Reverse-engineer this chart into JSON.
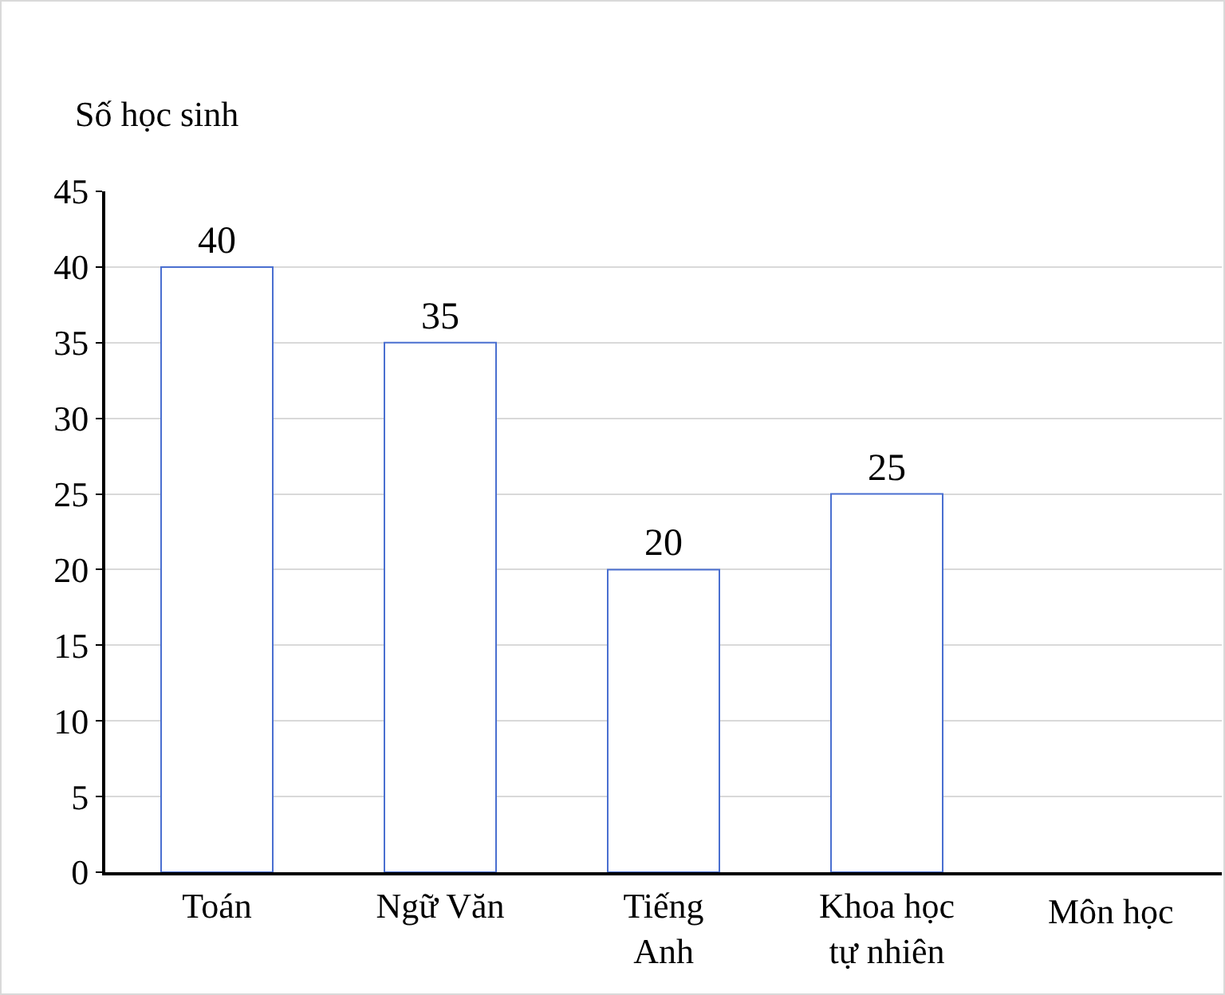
{
  "chart_data": {
    "type": "bar",
    "categories": [
      "Toán",
      "Ngữ Văn",
      "Tiếng Anh",
      "Khoa học tự nhiên"
    ],
    "values": [
      40,
      35,
      20,
      25
    ],
    "color": "#ffffff",
    "ylabel": "Số học sinh",
    "xlabel": "Môn học",
    "ylim": [
      0,
      45
    ],
    "yticks": [
      0,
      5,
      10,
      15,
      20,
      25,
      30,
      35,
      40,
      45
    ],
    "grid": "y",
    "data_labels": true
  }
}
